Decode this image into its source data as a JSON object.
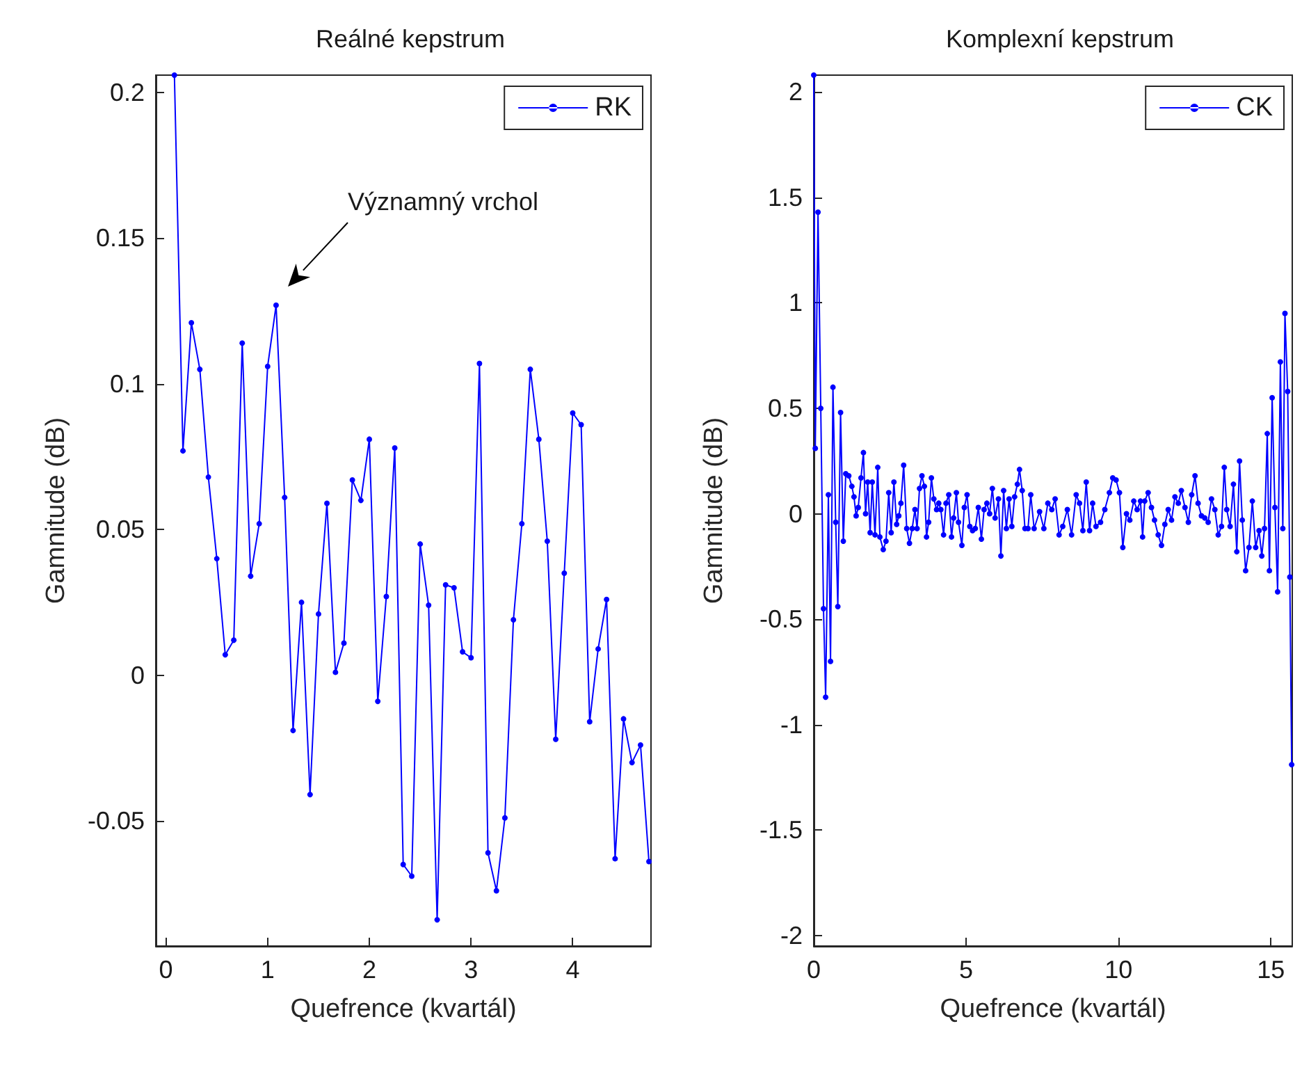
{
  "chart_data": [
    {
      "type": "line",
      "title": "Reálné kepstrum",
      "xlabel": "Quefrence (kvartál)",
      "ylabel": "Gamnitude (dB)",
      "legend": "top right",
      "marker": "circle",
      "line_style": "solid",
      "grid": false,
      "annotations": [
        "Významný vrchol"
      ],
      "x": [
        0.083,
        0.167,
        0.25,
        0.333,
        0.417,
        0.5,
        0.583,
        0.667,
        0.75,
        0.833,
        0.917,
        1.0,
        1.083,
        1.167,
        1.25,
        1.333,
        1.417,
        1.5,
        1.583,
        1.667,
        1.75,
        1.833,
        1.917,
        2.0,
        2.083,
        2.167,
        2.25,
        2.333,
        2.417,
        2.5,
        2.583,
        2.667,
        2.75,
        2.833,
        2.917,
        3.0,
        3.083,
        3.167,
        3.25,
        3.333,
        3.417,
        3.5,
        3.583,
        3.667,
        3.75,
        3.833,
        3.917,
        4.0,
        4.083,
        4.167,
        4.25,
        4.333,
        4.417,
        4.5,
        4.583,
        4.667,
        4.75
      ],
      "series": [
        {
          "name": "RK",
          "color": "#0000ff",
          "values": [
            0.206,
            0.077,
            0.121,
            0.105,
            0.068,
            0.04,
            0.007,
            0.012,
            0.114,
            0.034,
            0.052,
            0.106,
            0.127,
            0.061,
            -0.019,
            0.025,
            -0.041,
            0.021,
            0.059,
            0.001,
            0.011,
            0.067,
            0.06,
            0.081,
            -0.009,
            0.027,
            0.078,
            -0.065,
            -0.069,
            0.045,
            0.024,
            -0.084,
            0.031,
            0.03,
            0.008,
            0.006,
            0.107,
            -0.061,
            -0.074,
            -0.049,
            0.019,
            0.052,
            0.105,
            0.081,
            0.046,
            -0.022,
            0.035,
            0.09,
            0.086,
            -0.016,
            0.009,
            0.026,
            -0.063,
            -0.015,
            -0.03,
            -0.024,
            -0.064
          ]
        }
      ],
      "xlim": [
        -0.1,
        4.77
      ],
      "xticks": [
        0,
        1,
        2,
        3,
        4
      ],
      "ylim": [
        -0.093,
        0.206
      ],
      "yticks": [
        -0.05,
        0,
        0.05,
        0.1,
        0.15,
        0.2
      ]
    },
    {
      "type": "line",
      "title": "Komplexní kepstrum",
      "xlabel": "Quefrence (kvartál)",
      "ylabel": "Gamnitude (dB)",
      "legend": "top right",
      "marker": "circle",
      "line_style": "solid",
      "grid": false,
      "x": [
        0,
        0.05,
        0.14,
        0.23,
        0.32,
        0.39,
        0.48,
        0.55,
        0.63,
        0.72,
        0.79,
        0.88,
        0.97,
        1.05,
        1.15,
        1.25,
        1.32,
        1.39,
        1.46,
        1.55,
        1.63,
        1.7,
        1.77,
        1.85,
        1.92,
        2.01,
        2.1,
        2.17,
        2.28,
        2.37,
        2.46,
        2.54,
        2.63,
        2.72,
        2.79,
        2.86,
        2.95,
        3.05,
        3.14,
        3.23,
        3.32,
        3.39,
        3.47,
        3.55,
        3.63,
        3.7,
        3.77,
        3.86,
        3.94,
        4.03,
        4.1,
        4.17,
        4.26,
        4.34,
        4.43,
        4.52,
        4.59,
        4.68,
        4.75,
        4.86,
        4.94,
        5.03,
        5.12,
        5.21,
        5.3,
        5.4,
        5.5,
        5.59,
        5.68,
        5.77,
        5.86,
        5.95,
        6.06,
        6.14,
        6.23,
        6.32,
        6.41,
        6.5,
        6.59,
        6.68,
        6.75,
        6.84,
        6.93,
        7.03,
        7.12,
        7.23,
        7.41,
        7.55,
        7.68,
        7.81,
        7.92,
        8.05,
        8.17,
        8.32,
        8.46,
        8.61,
        8.72,
        8.83,
        8.94,
        9.05,
        9.15,
        9.26,
        9.41,
        9.55,
        9.7,
        9.81,
        9.92,
        10.03,
        10.14,
        10.26,
        10.37,
        10.5,
        10.61,
        10.72,
        10.79,
        10.86,
        10.97,
        11.08,
        11.18,
        11.3,
        11.41,
        11.52,
        11.63,
        11.74,
        11.85,
        11.96,
        12.06,
        12.18,
        12.29,
        12.4,
        12.51,
        12.61,
        12.72,
        12.83,
        12.94,
        13.05,
        13.16,
        13.27,
        13.38,
        13.47,
        13.55,
        13.66,
        13.77,
        13.88,
        13.97,
        14.06,
        14.17,
        14.28,
        14.39,
        14.5,
        14.61,
        14.7,
        14.79,
        14.88,
        14.95,
        15.04,
        15.13,
        15.22,
        15.31,
        15.39,
        15.46,
        15.55,
        15.62,
        15.68
      ],
      "series": [
        {
          "name": "CK",
          "color": "#0000ff",
          "values": [
            2.08,
            0.31,
            1.43,
            0.5,
            -0.45,
            -0.87,
            0.09,
            -0.7,
            0.6,
            -0.04,
            -0.44,
            0.48,
            -0.13,
            0.19,
            0.18,
            0.13,
            0.08,
            -0.01,
            0.03,
            0.17,
            0.29,
            0.0,
            0.15,
            -0.09,
            0.15,
            -0.1,
            0.22,
            -0.11,
            -0.17,
            -0.13,
            0.1,
            -0.09,
            0.15,
            -0.05,
            -0.01,
            0.05,
            0.23,
            -0.07,
            -0.14,
            -0.07,
            0.02,
            -0.07,
            0.12,
            0.18,
            0.13,
            -0.11,
            -0.04,
            0.17,
            0.07,
            0.02,
            0.05,
            0.02,
            -0.1,
            0.05,
            0.09,
            -0.11,
            -0.02,
            0.1,
            -0.04,
            -0.15,
            0.03,
            0.09,
            -0.06,
            -0.08,
            -0.07,
            0.03,
            -0.12,
            0.02,
            0.05,
            0.0,
            0.12,
            -0.02,
            0.07,
            -0.2,
            0.11,
            -0.07,
            0.07,
            -0.06,
            0.08,
            0.14,
            0.21,
            0.11,
            -0.07,
            -0.07,
            0.09,
            -0.07,
            0.01,
            -0.07,
            0.05,
            0.02,
            0.07,
            -0.1,
            -0.06,
            0.02,
            -0.1,
            0.09,
            0.05,
            -0.08,
            0.15,
            -0.08,
            0.05,
            -0.06,
            -0.04,
            0.02,
            0.1,
            0.17,
            0.16,
            0.1,
            -0.16,
            0.0,
            -0.03,
            0.06,
            0.02,
            0.06,
            -0.11,
            0.06,
            0.1,
            0.03,
            -0.03,
            -0.1,
            -0.15,
            -0.05,
            0.02,
            -0.03,
            0.08,
            0.05,
            0.11,
            0.03,
            -0.04,
            0.09,
            0.18,
            0.05,
            -0.01,
            -0.02,
            -0.04,
            0.07,
            0.02,
            -0.1,
            -0.06,
            0.22,
            0.02,
            -0.06,
            0.14,
            -0.18,
            0.25,
            -0.03,
            -0.27,
            -0.16,
            0.06,
            -0.16,
            -0.08,
            -0.2,
            -0.07,
            0.38,
            -0.27,
            0.55,
            0.03,
            -0.37,
            0.72,
            -0.07,
            0.95,
            0.58,
            -0.3,
            -1.19
          ]
        }
      ],
      "xlim": [
        0,
        15.7
      ],
      "xticks": [
        0,
        5,
        10,
        15
      ],
      "ylim": [
        -2.05,
        2.08
      ],
      "yticks": [
        -2,
        -1.5,
        -1,
        -0.5,
        0,
        0.5,
        1,
        1.5,
        2
      ]
    }
  ]
}
